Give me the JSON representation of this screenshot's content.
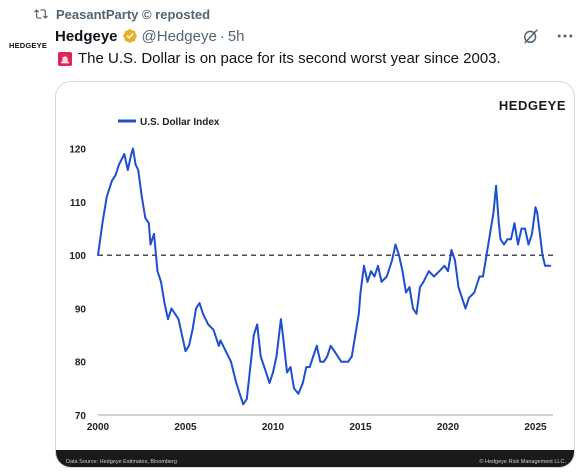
{
  "repost": {
    "text": "PeasantParty © reposted",
    "icon": "repost-icon"
  },
  "avatar": {
    "text": "HEDGEYE"
  },
  "tweet": {
    "author": "Hedgeye",
    "verified_color": "#e8b02a",
    "handle": "@Hedgeye",
    "separator": "·",
    "time": "5h",
    "text": "The U.S. Dollar is on pace for its second worst year since 2003.",
    "siren_icon": "siren-icon",
    "actions": [
      "grok-icon",
      "more-icon"
    ]
  },
  "chart_data": {
    "type": "line",
    "brand": "HEDGEYE",
    "series": [
      {
        "name": "U.S. Dollar Index",
        "color": "#1f4fd1",
        "points": [
          [
            2000.0,
            100
          ],
          [
            2000.25,
            106
          ],
          [
            2000.5,
            111
          ],
          [
            2000.8,
            114
          ],
          [
            2001.0,
            115
          ],
          [
            2001.2,
            117
          ],
          [
            2001.5,
            119
          ],
          [
            2001.7,
            116
          ],
          [
            2001.9,
            119
          ],
          [
            2002.0,
            120
          ],
          [
            2002.15,
            117
          ],
          [
            2002.3,
            116
          ],
          [
            2002.5,
            111
          ],
          [
            2002.7,
            107
          ],
          [
            2002.9,
            106
          ],
          [
            2003.0,
            102
          ],
          [
            2003.2,
            104
          ],
          [
            2003.4,
            97
          ],
          [
            2003.6,
            95
          ],
          [
            2003.8,
            91
          ],
          [
            2004.0,
            88
          ],
          [
            2004.2,
            90
          ],
          [
            2004.4,
            89
          ],
          [
            2004.6,
            88
          ],
          [
            2004.8,
            85
          ],
          [
            2005.0,
            82
          ],
          [
            2005.2,
            83
          ],
          [
            2005.4,
            86
          ],
          [
            2005.6,
            90
          ],
          [
            2005.8,
            91
          ],
          [
            2006.0,
            89
          ],
          [
            2006.3,
            87
          ],
          [
            2006.6,
            86
          ],
          [
            2006.9,
            83
          ],
          [
            2007.0,
            84
          ],
          [
            2007.3,
            82
          ],
          [
            2007.6,
            80
          ],
          [
            2007.9,
            76
          ],
          [
            2008.1,
            74
          ],
          [
            2008.3,
            72
          ],
          [
            2008.5,
            73
          ],
          [
            2008.7,
            79
          ],
          [
            2008.9,
            85
          ],
          [
            2009.1,
            87
          ],
          [
            2009.3,
            81
          ],
          [
            2009.5,
            79
          ],
          [
            2009.8,
            76
          ],
          [
            2010.0,
            78
          ],
          [
            2010.2,
            81
          ],
          [
            2010.45,
            88
          ],
          [
            2010.6,
            84
          ],
          [
            2010.8,
            78
          ],
          [
            2011.0,
            79
          ],
          [
            2011.2,
            75
          ],
          [
            2011.45,
            74
          ],
          [
            2011.7,
            76
          ],
          [
            2011.9,
            79
          ],
          [
            2012.1,
            79
          ],
          [
            2012.3,
            81
          ],
          [
            2012.5,
            83
          ],
          [
            2012.7,
            80
          ],
          [
            2012.9,
            80
          ],
          [
            2013.1,
            81
          ],
          [
            2013.3,
            83
          ],
          [
            2013.5,
            82
          ],
          [
            2013.7,
            81
          ],
          [
            2013.9,
            80
          ],
          [
            2014.1,
            80
          ],
          [
            2014.3,
            80
          ],
          [
            2014.5,
            81
          ],
          [
            2014.7,
            85
          ],
          [
            2014.9,
            89
          ],
          [
            2015.0,
            93
          ],
          [
            2015.2,
            98
          ],
          [
            2015.4,
            95
          ],
          [
            2015.6,
            97
          ],
          [
            2015.8,
            96
          ],
          [
            2016.0,
            98
          ],
          [
            2016.2,
            95
          ],
          [
            2016.5,
            96
          ],
          [
            2016.8,
            99
          ],
          [
            2017.0,
            102
          ],
          [
            2017.2,
            100
          ],
          [
            2017.4,
            97
          ],
          [
            2017.6,
            93
          ],
          [
            2017.8,
            94
          ],
          [
            2018.0,
            90
          ],
          [
            2018.2,
            89
          ],
          [
            2018.4,
            94
          ],
          [
            2018.6,
            95
          ],
          [
            2018.9,
            97
          ],
          [
            2019.2,
            96
          ],
          [
            2019.5,
            97
          ],
          [
            2019.8,
            98
          ],
          [
            2020.0,
            97
          ],
          [
            2020.2,
            101
          ],
          [
            2020.4,
            99
          ],
          [
            2020.6,
            94
          ],
          [
            2020.8,
            92
          ],
          [
            2021.0,
            90
          ],
          [
            2021.2,
            92
          ],
          [
            2021.5,
            93
          ],
          [
            2021.8,
            96
          ],
          [
            2022.0,
            96
          ],
          [
            2022.2,
            100
          ],
          [
            2022.4,
            104
          ],
          [
            2022.6,
            108
          ],
          [
            2022.75,
            113
          ],
          [
            2022.9,
            106
          ],
          [
            2023.0,
            103
          ],
          [
            2023.2,
            102
          ],
          [
            2023.4,
            103
          ],
          [
            2023.6,
            103
          ],
          [
            2023.8,
            106
          ],
          [
            2024.0,
            102
          ],
          [
            2024.2,
            105
          ],
          [
            2024.4,
            105
          ],
          [
            2024.6,
            102
          ],
          [
            2024.8,
            104
          ],
          [
            2025.0,
            109
          ],
          [
            2025.1,
            108
          ],
          [
            2025.25,
            104
          ],
          [
            2025.4,
            100
          ],
          [
            2025.55,
            98
          ],
          [
            2025.7,
            98
          ],
          [
            2025.85,
            98
          ]
        ]
      }
    ],
    "reference_line": {
      "y": 100,
      "style": "dashed"
    },
    "x_ticks": [
      "2000",
      "2005",
      "2010",
      "2015",
      "2020",
      "2025"
    ],
    "y_ticks": [
      "70",
      "80",
      "90",
      "100",
      "110",
      "120"
    ],
    "xlim": [
      2000,
      2026
    ],
    "ylim": [
      70,
      122
    ],
    "footer_left": "Data Source: Hedgeye Estimates, Bloomberg",
    "footer_right": "© Hedgeye Risk Management LLC."
  }
}
